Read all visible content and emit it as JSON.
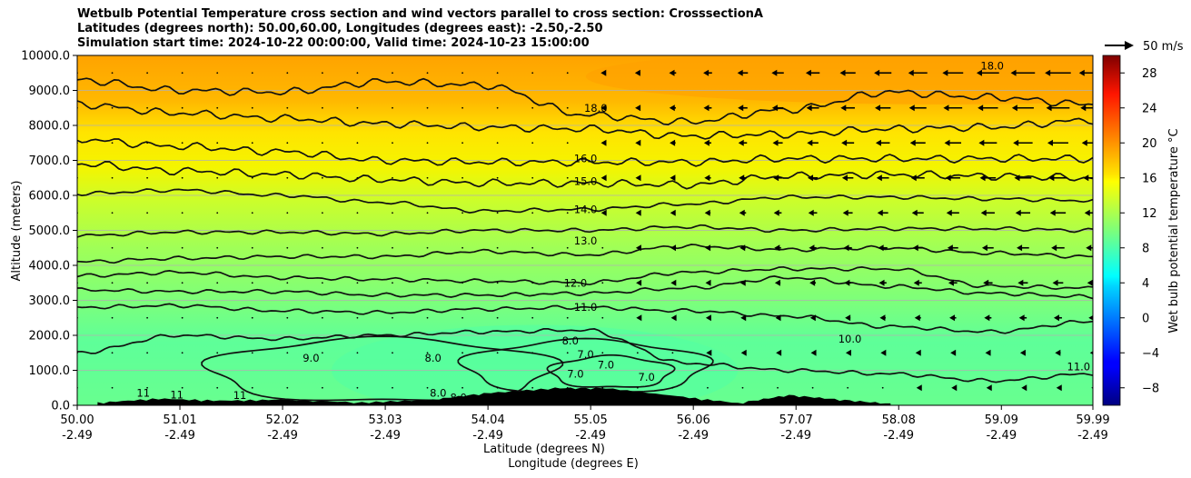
{
  "chart_data": {
    "type": "heatmap",
    "title_lines": [
      "Wetbulb Potential Temperature cross section and wind vectors parallel to cross section: CrosssectionA",
      "Latitudes (degrees north): 50.00,60.00, Longitudes (degrees east): -2.50,-2.50",
      "Simulation start time: 2024-10-22 00:00:00, Valid time: 2024-10-23 15:00:00"
    ],
    "ylabel": "Altitude (meters)",
    "xlabel_lines": [
      "Latitude (degrees N)",
      "Longitude (degrees E)"
    ],
    "ylim": [
      0,
      10000
    ],
    "y_ticks": [
      0,
      1000,
      2000,
      3000,
      4000,
      5000,
      6000,
      7000,
      8000,
      9000,
      10000
    ],
    "y_tick_labels": [
      "0.0",
      "1000.0",
      "2000.0",
      "3000.0",
      "4000.0",
      "5000.0",
      "6000.0",
      "7000.0",
      "8000.0",
      "9000.0",
      "10000.0"
    ],
    "xlim": [
      50.0,
      59.99
    ],
    "x_ticks": [
      50.0,
      51.01,
      52.02,
      53.03,
      54.04,
      55.05,
      56.06,
      57.07,
      58.08,
      59.09,
      59.99
    ],
    "x_tick_labels_lat": [
      "50.00",
      "51.01",
      "52.02",
      "53.03",
      "54.04",
      "55.05",
      "56.06",
      "57.07",
      "58.08",
      "59.09",
      "59.99"
    ],
    "x_tick_labels_lon": [
      "-2.49",
      "-2.49",
      "-2.49",
      "-2.49",
      "-2.49",
      "-2.49",
      "-2.49",
      "-2.49",
      "-2.49",
      "-2.49",
      "-2.49"
    ],
    "grid": "horizontal",
    "colorbar": {
      "label": "Wet bulb potential temperature °C",
      "range": [
        -10,
        30
      ],
      "ticks": [
        -8,
        -4,
        0,
        4,
        8,
        12,
        16,
        20,
        24,
        28
      ],
      "colormap": "jet"
    },
    "wind_key": {
      "label": "50 m/s",
      "speed": 50
    },
    "contour_labels": [
      {
        "text": "18.0",
        "lat": 55.1,
        "alt": 8500
      },
      {
        "text": "18.0",
        "lat": 59.0,
        "alt": 9700
      },
      {
        "text": "16.0",
        "lat": 55.0,
        "alt": 7050
      },
      {
        "text": "15.0",
        "lat": 55.0,
        "alt": 6400
      },
      {
        "text": "14.0",
        "lat": 55.0,
        "alt": 5600
      },
      {
        "text": "13.0",
        "lat": 55.0,
        "alt": 4700
      },
      {
        "text": "12.0",
        "lat": 54.9,
        "alt": 3500
      },
      {
        "text": "11.0",
        "lat": 55.0,
        "alt": 2800
      },
      {
        "text": "10.0",
        "lat": 57.6,
        "alt": 1900
      },
      {
        "text": "9.0",
        "lat": 52.3,
        "alt": 1350
      },
      {
        "text": "8.0",
        "lat": 53.5,
        "alt": 1350
      },
      {
        "text": "8.0",
        "lat": 54.85,
        "alt": 1850
      },
      {
        "text": "7.0",
        "lat": 55.0,
        "alt": 1450
      },
      {
        "text": "7.0",
        "lat": 55.2,
        "alt": 1150
      },
      {
        "text": "7.0",
        "lat": 54.9,
        "alt": 900
      },
      {
        "text": "7.0",
        "lat": 55.6,
        "alt": 800
      },
      {
        "text": "11",
        "lat": 50.65,
        "alt": 350
      },
      {
        "text": "11",
        "lat": 50.98,
        "alt": 300
      },
      {
        "text": "11",
        "lat": 51.6,
        "alt": 280
      },
      {
        "text": "8.0",
        "lat": 53.55,
        "alt": 350
      },
      {
        "text": "8.0",
        "lat": 53.75,
        "alt": 220
      },
      {
        "text": "11.0",
        "lat": 59.85,
        "alt": 1100
      }
    ],
    "isotherms": [
      {
        "value": 18,
        "alt": [
          9300,
          9000,
          8950,
          9250,
          9150,
          8300,
          8100,
          8450,
          8950,
          8800,
          8600
        ]
      },
      {
        "value": 17,
        "alt": [
          8600,
          8350,
          8200,
          8050,
          7950,
          7900,
          7700,
          7750,
          7900,
          7950,
          8150
        ]
      },
      {
        "value": 16,
        "alt": [
          7600,
          7400,
          7250,
          7000,
          6950,
          6950,
          6950,
          7050,
          7050,
          7050,
          7050
        ]
      },
      {
        "value": 15,
        "alt": [
          6900,
          6700,
          6600,
          6450,
          6350,
          6350,
          6300,
          6550,
          6600,
          6550,
          6500
        ]
      },
      {
        "value": 14,
        "alt": [
          6050,
          6150,
          6000,
          5800,
          5550,
          5600,
          5750,
          5950,
          5950,
          5900,
          5850
        ]
      },
      {
        "value": 13,
        "alt": [
          4850,
          4950,
          4950,
          4900,
          5000,
          5000,
          5100,
          5000,
          5050,
          5050,
          5000
        ]
      },
      {
        "value": 12.5,
        "alt": [
          4100,
          4200,
          4250,
          4250,
          4400,
          4300,
          4550,
          4450,
          4500,
          4350,
          4250
        ]
      },
      {
        "value": 12,
        "alt": [
          3700,
          3800,
          3650,
          3600,
          3550,
          3500,
          3800,
          3900,
          3900,
          3400,
          3350
        ]
      },
      {
        "value": 11.5,
        "alt": [
          3300,
          3250,
          3250,
          3150,
          3150,
          3200,
          3350,
          3650,
          3400,
          3200,
          3100
        ]
      },
      {
        "value": 11,
        "alt": [
          2800,
          2850,
          2700,
          2650,
          2750,
          2800,
          2700,
          2550,
          2250,
          2100,
          2400
        ]
      },
      {
        "value": 10,
        "alt": [
          1500,
          2000,
          1900,
          2000,
          2100,
          2150,
          1200,
          1000,
          900,
          700,
          900
        ]
      }
    ],
    "orography": [
      {
        "lat": 50.2,
        "alt": 30
      },
      {
        "lat": 50.8,
        "alt": 150
      },
      {
        "lat": 51.4,
        "alt": 90
      },
      {
        "lat": 52.0,
        "alt": 120
      },
      {
        "lat": 52.8,
        "alt": 40
      },
      {
        "lat": 53.5,
        "alt": 120
      },
      {
        "lat": 54.0,
        "alt": 300
      },
      {
        "lat": 54.7,
        "alt": 450
      },
      {
        "lat": 55.2,
        "alt": 450
      },
      {
        "lat": 55.9,
        "alt": 220
      },
      {
        "lat": 56.5,
        "alt": 20
      },
      {
        "lat": 57.0,
        "alt": 250
      },
      {
        "lat": 57.5,
        "alt": 120
      },
      {
        "lat": 58.0,
        "alt": 0
      }
    ]
  }
}
